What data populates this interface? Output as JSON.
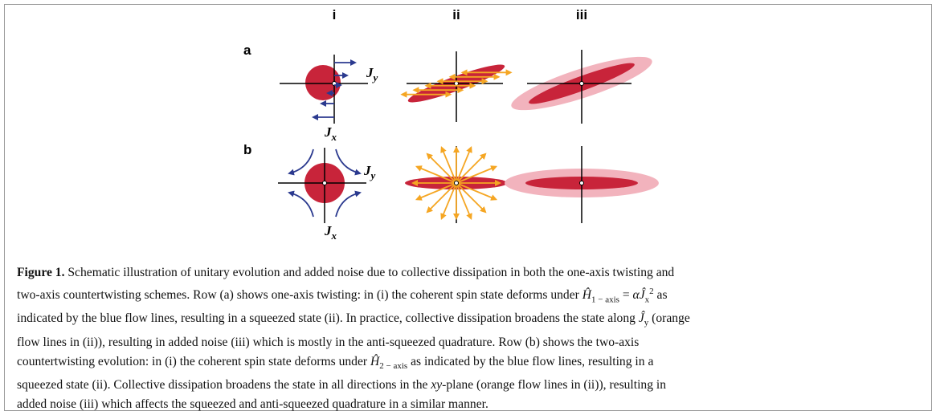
{
  "figure": {
    "columns": [
      "i",
      "ii",
      "iii"
    ],
    "rows": [
      "a",
      "b"
    ],
    "axis_labels": [
      {
        "main": "J",
        "sub": "y"
      },
      {
        "main": "J",
        "sub": "x"
      }
    ],
    "caption": {
      "lines": [
        [
          {
            "text": "Figure 1.",
            "style": "b"
          },
          " Schematic illustration of unitary evolution and added noise due to collective dissipation in both the one-axis twisting and"
        ],
        [
          "two-axis countertwisting schemes. Row (a) shows one-axis twisting: in (i) the coherent spin state deforms under ",
          {
            "text": "Ĥ",
            "style": "i"
          },
          {
            "text": "1 − axis",
            "style": "sub"
          },
          " = ",
          {
            "text": "α",
            "style": "i"
          },
          {
            "text": "Ĵ",
            "style": "i"
          },
          {
            "text": "x",
            "style": "sub"
          },
          {
            "text": "2",
            "style": "sup"
          },
          " as"
        ],
        [
          "indicated by the blue flow lines, resulting in a squeezed state (ii). In practice, collective dissipation broadens the state along ",
          {
            "text": "Ĵ",
            "style": "i"
          },
          {
            "text": "y",
            "style": "sub"
          },
          " (orange"
        ],
        [
          "flow lines in (ii)), resulting in added noise (iii) which is mostly in the anti-squeezed quadrature. Row (b) shows the two-axis"
        ],
        [
          "countertwisting evolution: in (i) the coherent spin state deforms under ",
          {
            "text": "Ĥ",
            "style": "i"
          },
          {
            "text": "2 − axis",
            "style": "sub"
          },
          " as indicated by the blue flow lines, resulting in a"
        ],
        [
          "squeezed state (ii). Collective dissipation broadens the state in all directions in the ",
          {
            "text": "xy",
            "style": "i"
          },
          "-plane (orange flow lines in (ii)), resulting in"
        ],
        [
          "added noise (iii) which affects the squeezed and anti-squeezed quadrature in a similar manner."
        ]
      ]
    }
  }
}
